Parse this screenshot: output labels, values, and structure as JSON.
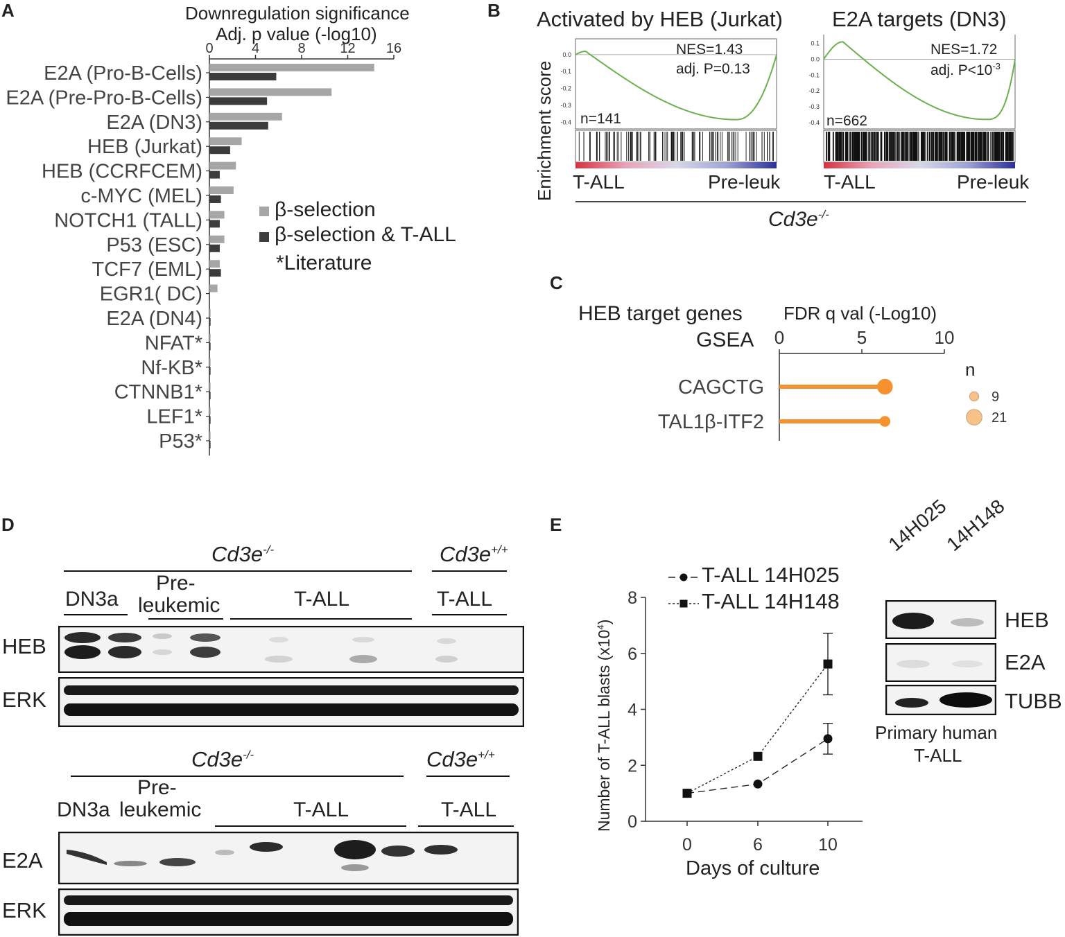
{
  "panels": {
    "a": "A",
    "b": "B",
    "c": "C",
    "d": "D",
    "e": "E"
  },
  "panel_a": {
    "title_line1": "Downregulation significance",
    "title_line2": "Adj. p value (-log10)",
    "legend": [
      {
        "label": "β-selection",
        "color": "#a6a6a6"
      },
      {
        "label": "β-selection & T-ALL",
        "color": "#3c3c3c"
      }
    ],
    "note": "*Literature"
  },
  "panel_b": {
    "plots": [
      {
        "title": "Activated by HEB (Jurkat)",
        "nes": "NES=1.43",
        "padj": "adj. P=0.13",
        "n": "n=141",
        "yticks": [
          "0.0",
          "-0.1",
          "-0.2",
          "-0.3",
          "-0.4"
        ]
      },
      {
        "title": "E2A targets (DN3)",
        "nes": "NES=1.72",
        "padj": "adj. P<10",
        "padj_exp": "-3",
        "n": "n=662",
        "yticks": [
          "0.1",
          "0.0",
          "-0.1",
          "-0.2",
          "-0.3",
          "-0.4"
        ]
      }
    ],
    "ylabel": "Enrichment score",
    "left_label": "T-ALL",
    "right_label": "Pre-leuk",
    "genotype_base": "Cd3e",
    "genotype_sup": "-/-",
    "curve_color": "#6ab04c"
  },
  "panel_c": {
    "title1": "HEB target genes",
    "title2": "GSEA",
    "axis_title": "FDR q val (-Log10)",
    "size_title": "n",
    "size_legend": [
      {
        "label": "9"
      },
      {
        "label": "21"
      }
    ],
    "color": "#f5922f"
  },
  "panel_d": {
    "top": {
      "genotype_ko_base": "Cd3e",
      "genotype_ko_sup": "-/-",
      "genotype_wt_base": "Cd3e",
      "genotype_wt_sup": "+/+",
      "lanes": [
        "DN3a",
        "Pre-",
        "leukemic",
        "T-ALL",
        "T-ALL"
      ],
      "rows": [
        "HEB",
        "ERK"
      ]
    },
    "bottom": {
      "genotype_ko_base": "Cd3e",
      "genotype_ko_sup": "-/-",
      "genotype_wt_base": "Cd3e",
      "genotype_wt_sup": "+/+",
      "lanes": [
        "DN3a",
        "Pre-",
        "leukemic",
        "T-ALL",
        "T-ALL"
      ],
      "rows": [
        "E2A",
        "ERK"
      ]
    }
  },
  "panel_e": {
    "blot_cols": [
      "14H025",
      "14H148"
    ],
    "blot_rows": [
      "HEB",
      "E2A",
      "TUBB"
    ],
    "blot_caption1": "Primary human",
    "blot_caption2": "T-ALL"
  },
  "chart_data": [
    {
      "type": "bar",
      "orientation": "horizontal",
      "title": "Downregulation significance",
      "xlabel": "Adj. p value (-log10)",
      "xlim": [
        0,
        16
      ],
      "xticks": [
        "0",
        "4",
        "8",
        "12",
        "16"
      ],
      "categories": [
        "E2A (Pro-B-Cells)",
        "E2A (Pre-Pro-B-Cells)",
        "E2A (DN3)",
        "HEB (Jurkat)",
        "HEB (CCRFCEM)",
        "c-MYC (MEL)",
        "NOTCH1 (TALL)",
        "P53 (ESC)",
        "TCF7 (EML)",
        "EGR1( DC)",
        "E2A (DN4)",
        "NFAT*",
        "Nf-KB*",
        "CTNNB1*",
        "LEF1*",
        "P53*"
      ],
      "series": [
        {
          "name": "β-selection",
          "values": [
            14.3,
            10.6,
            6.3,
            2.8,
            2.3,
            2.1,
            1.3,
            1.3,
            0.9,
            0.7,
            0.1,
            0.1,
            0.1,
            0.1,
            0.1,
            0.1
          ]
        },
        {
          "name": "β-selection & T-ALL",
          "values": [
            5.8,
            5.0,
            5.1,
            1.8,
            0.9,
            1.0,
            0.9,
            0.9,
            1.0,
            0,
            0.1,
            0.1,
            0.1,
            0.1,
            0.1,
            0.1
          ]
        }
      ],
      "legend_position": "right"
    },
    {
      "type": "scatter",
      "title": "HEB target genes",
      "xlabel": "FDR q val (-Log10)",
      "xlim": [
        0,
        10
      ],
      "xticks": [
        "0",
        "5",
        "10"
      ],
      "categories": [
        "CAGCTG",
        "TAL1β-ITF2"
      ],
      "values": [
        6.4,
        6.4
      ],
      "sizes": [
        21,
        9
      ]
    },
    {
      "type": "line",
      "xlabel": "Days of culture",
      "ylabel": "Number of T-ALL blasts (x10",
      "ylabel_sup": "4",
      "ylabel_end": ")",
      "x": [
        0,
        6,
        10
      ],
      "xticks": [
        "0",
        "6",
        "10"
      ],
      "ylim": [
        0,
        8
      ],
      "yticks": [
        "0",
        "2",
        "4",
        "6",
        "8"
      ],
      "series": [
        {
          "name": "T-ALL 14H025",
          "values": [
            1.0,
            1.33,
            2.95
          ],
          "err": [
            0,
            0,
            0.55
          ]
        },
        {
          "name": "T-ALL 14H148",
          "values": [
            1.0,
            2.32,
            5.62
          ],
          "err": [
            0,
            0,
            1.1
          ]
        }
      ],
      "legend_position": "top-left"
    }
  ]
}
